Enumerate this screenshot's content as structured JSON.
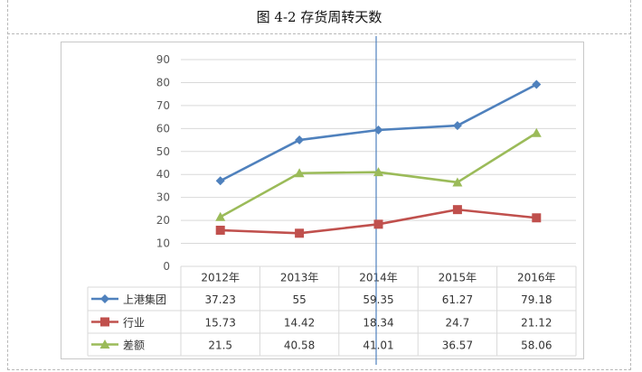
{
  "figure": {
    "caption": "图 4-2 存货周转天数"
  },
  "chart_data": {
    "type": "line",
    "title": "",
    "xlabel": "",
    "ylabel": "",
    "categories": [
      "2012年",
      "2013年",
      "2014年",
      "2015年",
      "2016年"
    ],
    "ylim": [
      0,
      90
    ],
    "yticks": [
      0,
      10,
      20,
      30,
      40,
      50,
      60,
      70,
      80,
      90
    ],
    "grid": true,
    "legend": "data-table-left",
    "series": [
      {
        "name": "上港集团",
        "values": [
          37.23,
          55,
          59.35,
          61.27,
          79.18
        ],
        "color": "#4f81bd",
        "marker": "diamond"
      },
      {
        "name": "行业",
        "values": [
          15.73,
          14.42,
          18.34,
          24.7,
          21.12
        ],
        "color": "#c0504d",
        "marker": "square"
      },
      {
        "name": "差额",
        "values": [
          21.5,
          40.58,
          41.01,
          36.57,
          58.06
        ],
        "color": "#9bbb59",
        "marker": "triangle"
      }
    ],
    "table_cells": [
      [
        "37.23",
        "55",
        "59.35",
        "61.27",
        "79.18"
      ],
      [
        "15.73",
        "14.42",
        "18.34",
        "24.7",
        "21.12"
      ],
      [
        "21.5",
        "40.58",
        "41.01",
        "36.57",
        "58.06"
      ]
    ],
    "gridline_color": "#d9d9d9",
    "cursor_line_color": "#4f81bd"
  }
}
